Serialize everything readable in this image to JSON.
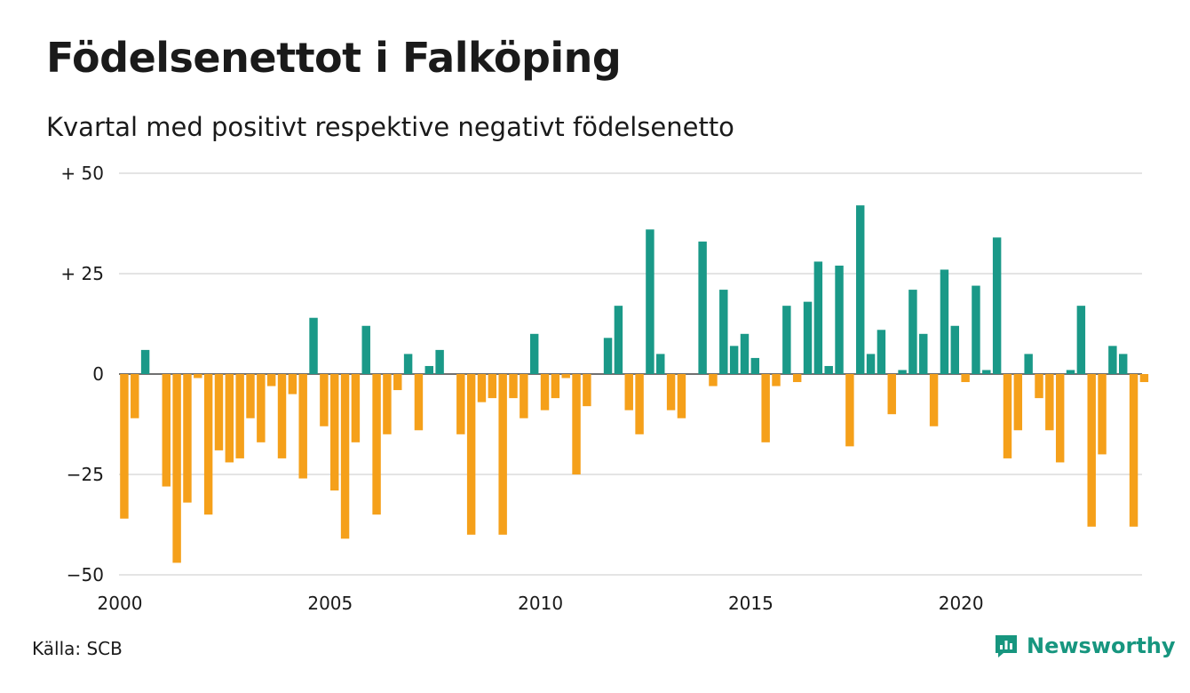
{
  "title": "Födelsenettot i Falköping",
  "subtitle": "Kvartal med positivt respektive negativt födelsenetto",
  "source": "Källa: SCB",
  "brand": {
    "name": "Newsworthy",
    "icon": "newsworthy-logo-icon",
    "color": "#17967f"
  },
  "chart_data": {
    "type": "bar",
    "x_start": "2000 Q1",
    "values": [
      -36,
      -11,
      6,
      0,
      -28,
      -47,
      -32,
      -1,
      -35,
      -19,
      -22,
      -21,
      -11,
      -17,
      -3,
      -21,
      -5,
      -26,
      14,
      -13,
      -29,
      -41,
      -17,
      12,
      -35,
      -15,
      -4,
      5,
      -14,
      2,
      6,
      0,
      -15,
      -40,
      -7,
      -6,
      -40,
      -6,
      -11,
      10,
      -9,
      -6,
      -1,
      -25,
      -8,
      0,
      9,
      17,
      -9,
      -15,
      36,
      5,
      -9,
      -11,
      0,
      33,
      -3,
      21,
      7,
      10,
      4,
      -17,
      -3,
      17,
      -2,
      18,
      28,
      2,
      27,
      -18,
      42,
      5,
      11,
      -10,
      1,
      21,
      10,
      -13,
      26,
      12,
      -2,
      22,
      1,
      34,
      -21,
      -14,
      5,
      -6,
      -14,
      -22,
      1,
      17,
      -38,
      -20,
      7,
      5,
      -38,
      -2
    ],
    "x_ticks": [
      2000,
      2005,
      2010,
      2015,
      2020
    ],
    "y_ticks": [
      50,
      25,
      0,
      -25,
      -50
    ],
    "y_tick_labels": [
      "+ 50",
      "+ 25",
      "0",
      "−25",
      "−50"
    ],
    "ylim": [
      -50,
      50
    ],
    "positive_color": "#1a9988",
    "negative_color": "#f5a01a",
    "grid": true
  }
}
